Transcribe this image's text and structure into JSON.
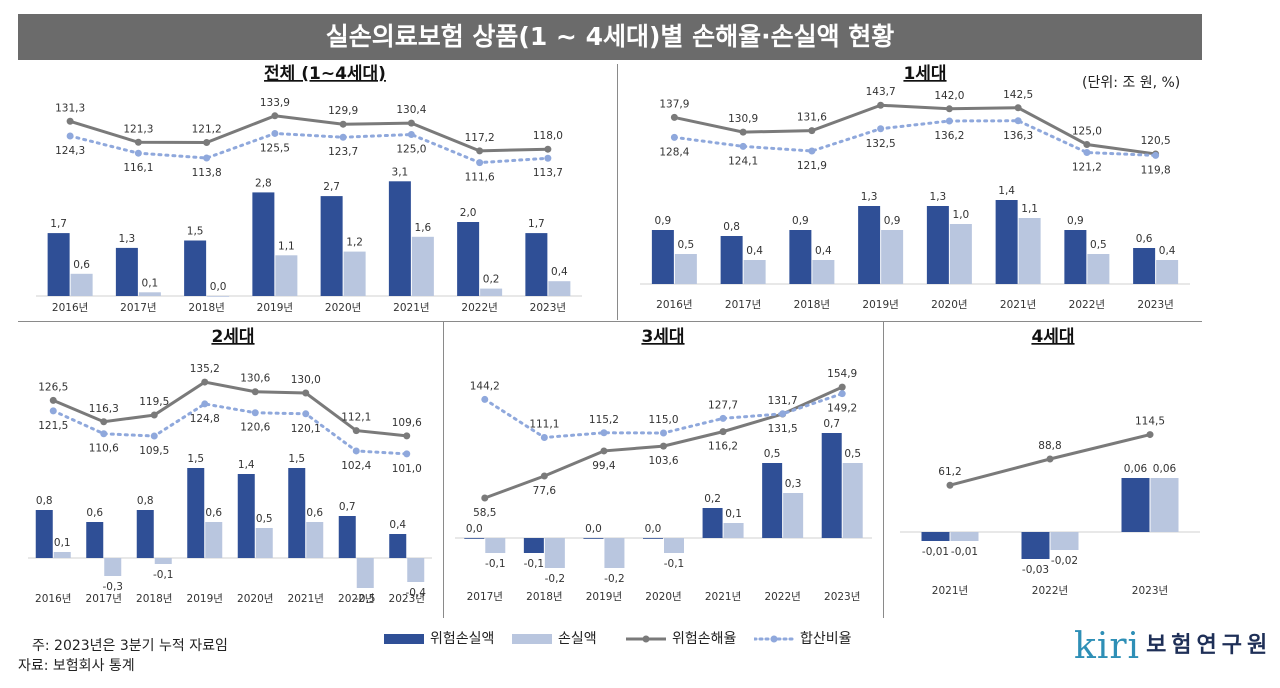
{
  "title": "실손의료보험 상품(1 ~ 4세대)별 손해율·손실액 현황",
  "unit_note": "(단위: 조 원, %)",
  "legend": {
    "risk_loss_amount": "위험손실액",
    "loss_amount": "손실액",
    "risk_loss_ratio": "위험손해율",
    "combined_ratio": "합산비율"
  },
  "footnotes": {
    "note": "주: 2023년은 3분기 누적 자료임",
    "source": "자료: 보험회사 통계"
  },
  "logo": {
    "mark": "kiri",
    "text": "보험연구원"
  },
  "colors": {
    "risk_loss_bar": "#2f4f96",
    "loss_bar": "#b9c6df",
    "risk_loss_ratio_line": "#7a7a7a",
    "combined_ratio_line": "#8fa8dc",
    "title_bar": "#6b6b6b",
    "logo_mark": "#2e8fb6"
  },
  "chart_data": [
    {
      "id": "total",
      "type": "bar+line",
      "title": "전체 (1~4세대)",
      "categories": [
        "2016년",
        "2017년",
        "2018년",
        "2019년",
        "2020년",
        "2021년",
        "2022년",
        "2023년"
      ],
      "series": [
        {
          "name": "위험손실액",
          "kind": "bar",
          "values": [
            1.7,
            1.3,
            1.5,
            2.8,
            2.7,
            3.1,
            2.0,
            1.7
          ],
          "labels": [
            "1,7",
            "1,3",
            "1,5",
            "2,8",
            "2,7",
            "3,1",
            "2,0",
            "1,7"
          ]
        },
        {
          "name": "손실액",
          "kind": "bar",
          "values": [
            0.6,
            0.1,
            0.0,
            1.1,
            1.2,
            1.6,
            0.2,
            0.4
          ],
          "labels": [
            "0,6",
            "0,1",
            "0,0",
            "1,1",
            "1,2",
            "1,6",
            "0,2",
            "0,4"
          ]
        },
        {
          "name": "위험손해율",
          "kind": "line",
          "values": [
            131.3,
            121.3,
            121.2,
            133.9,
            129.9,
            130.4,
            117.2,
            118.0
          ],
          "labels": [
            "131,3",
            "121,3",
            "121,2",
            "133,9",
            "129,9",
            "130,4",
            "117,2",
            "118,0"
          ]
        },
        {
          "name": "합산비율",
          "kind": "line",
          "values": [
            124.3,
            116.1,
            113.8,
            125.5,
            123.7,
            125.0,
            111.6,
            113.7
          ],
          "labels": [
            "124,3",
            "116,1",
            "113,8",
            "125,5",
            "123,7",
            "125,0",
            "111,6",
            "113,7"
          ]
        }
      ]
    },
    {
      "id": "gen1",
      "type": "bar+line",
      "title": "1세대",
      "categories": [
        "2016년",
        "2017년",
        "2018년",
        "2019년",
        "2020년",
        "2021년",
        "2022년",
        "2023년"
      ],
      "series": [
        {
          "name": "위험손실액",
          "kind": "bar",
          "values": [
            0.9,
            0.8,
            0.9,
            1.3,
            1.3,
            1.4,
            0.9,
            0.6
          ],
          "labels": [
            "0,9",
            "0,8",
            "0,9",
            "1,3",
            "1,3",
            "1,4",
            "0,9",
            "0,6"
          ]
        },
        {
          "name": "손실액",
          "kind": "bar",
          "values": [
            0.5,
            0.4,
            0.4,
            0.9,
            1.0,
            1.1,
            0.5,
            0.4
          ],
          "labels": [
            "0,5",
            "0,4",
            "0,4",
            "0,9",
            "1,0",
            "1,1",
            "0,5",
            "0,4"
          ]
        },
        {
          "name": "위험손해율",
          "kind": "line",
          "values": [
            137.9,
            130.9,
            131.6,
            143.7,
            142.0,
            142.5,
            125.0,
            120.5
          ],
          "labels": [
            "137,9",
            "130,9",
            "131,6",
            "143,7",
            "142,0",
            "142,5",
            "125,0",
            "120,5"
          ]
        },
        {
          "name": "합산비율",
          "kind": "line",
          "values": [
            128.4,
            124.1,
            121.9,
            132.5,
            136.2,
            136.3,
            121.2,
            119.8
          ],
          "labels": [
            "128,4",
            "124,1",
            "121,9",
            "132,5",
            "136,2",
            "136,3",
            "121,2",
            "119,8"
          ]
        }
      ]
    },
    {
      "id": "gen2",
      "type": "bar+line",
      "title": "2세대",
      "categories": [
        "2016년",
        "2017년",
        "2018년",
        "2019년",
        "2020년",
        "2021년",
        "2022년",
        "2023년"
      ],
      "series": [
        {
          "name": "위험손실액",
          "kind": "bar",
          "values": [
            0.8,
            0.6,
            0.8,
            1.5,
            1.4,
            1.5,
            0.7,
            0.4
          ],
          "labels": [
            "0,8",
            "0,6",
            "0,8",
            "1,5",
            "1,4",
            "1,5",
            "0,7",
            "0,4"
          ]
        },
        {
          "name": "손실액",
          "kind": "bar",
          "values": [
            0.1,
            -0.3,
            -0.1,
            0.6,
            0.5,
            0.6,
            -0.5,
            -0.4
          ],
          "labels": [
            "0,1",
            "-0,3",
            "-0,1",
            "0,6",
            "0,5",
            "0,6",
            "-0,5",
            "-0,4"
          ]
        },
        {
          "name": "위험손해율",
          "kind": "line",
          "values": [
            126.5,
            116.3,
            119.5,
            135.2,
            130.6,
            130.0,
            112.1,
            109.6
          ],
          "labels": [
            "126,5",
            "116,3",
            "119,5",
            "135,2",
            "130,6",
            "130,0",
            "112,1",
            "109,6"
          ]
        },
        {
          "name": "합산비율",
          "kind": "line",
          "values": [
            121.5,
            110.6,
            109.5,
            124.8,
            120.6,
            120.1,
            102.4,
            101.0
          ],
          "labels": [
            "121,5",
            "110,6",
            "109,5",
            "124,8",
            "120,6",
            "120,1",
            "102,4",
            "101,0"
          ]
        }
      ]
    },
    {
      "id": "gen3",
      "type": "bar+line",
      "title": "3세대",
      "categories": [
        "2017년",
        "2018년",
        "2019년",
        "2020년",
        "2021년",
        "2022년",
        "2023년"
      ],
      "series": [
        {
          "name": "위험손실액",
          "kind": "bar",
          "values": [
            0.0,
            -0.1,
            0.0,
            0.0,
            0.2,
            0.5,
            0.7
          ],
          "labels": [
            "0,0",
            "-0,1",
            "0,0",
            "0,0",
            "0,2",
            "0,5",
            "0,7"
          ]
        },
        {
          "name": "손실액",
          "kind": "bar",
          "values": [
            -0.1,
            -0.2,
            -0.2,
            -0.1,
            0.1,
            0.3,
            0.5
          ],
          "labels": [
            "-0,1",
            "-0,2",
            "-0,2",
            "-0,1",
            "0,1",
            "0,3",
            "0,5"
          ]
        },
        {
          "name": "위험손해율",
          "kind": "line",
          "values": [
            58.5,
            77.6,
            99.4,
            103.6,
            116.2,
            131.5,
            154.9
          ],
          "labels": [
            "58,5",
            "77,6",
            "99,4",
            "103,6",
            "116,2",
            "131,5",
            "154,9"
          ]
        },
        {
          "name": "합산비율",
          "kind": "line",
          "values": [
            144.2,
            111.1,
            115.2,
            115.0,
            127.7,
            131.7,
            149.2
          ],
          "labels": [
            "144,2",
            "111,1",
            "115,2",
            "115,0",
            "127,7",
            "131,7",
            "149,2"
          ]
        }
      ]
    },
    {
      "id": "gen4",
      "type": "bar+line",
      "title": "4세대",
      "categories": [
        "2021년",
        "2022년",
        "2023년"
      ],
      "series": [
        {
          "name": "위험손실액",
          "kind": "bar",
          "values": [
            -0.01,
            -0.03,
            0.06
          ],
          "labels": [
            "-0,01",
            "-0,03",
            "0,06"
          ]
        },
        {
          "name": "손실액",
          "kind": "bar",
          "values": [
            -0.01,
            -0.02,
            0.06
          ],
          "labels": [
            "-0,01",
            "-0,02",
            "0,06"
          ]
        },
        {
          "name": "위험손해율",
          "kind": "line",
          "values": [
            61.2,
            88.8,
            114.5
          ],
          "labels": [
            "61,2",
            "88,8",
            "114,5"
          ]
        }
      ]
    }
  ]
}
